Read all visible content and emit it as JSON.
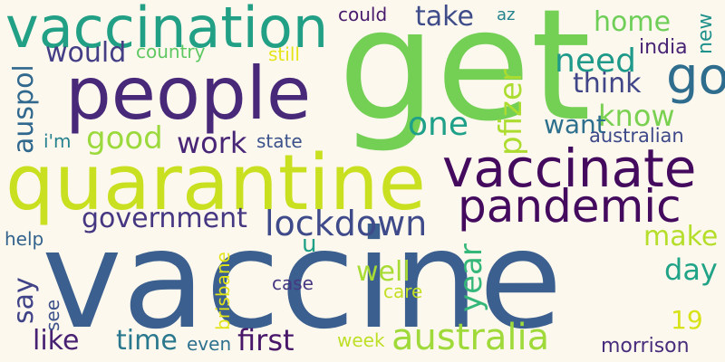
{
  "word_cloud": {
    "background": "#fdf8ee",
    "words": [
      {
        "text": "vaccine",
        "color": "#3b5f8e",
        "orientation": "horizontal"
      },
      {
        "text": "get",
        "color": "#74d055",
        "orientation": "horizontal"
      },
      {
        "text": "people",
        "color": "#482878",
        "orientation": "horizontal"
      },
      {
        "text": "vaccination",
        "color": "#22a086",
        "orientation": "horizontal"
      },
      {
        "text": "quarantine",
        "color": "#c8e020",
        "orientation": "horizontal"
      },
      {
        "text": "vaccinate",
        "color": "#440a5e",
        "orientation": "horizontal"
      },
      {
        "text": "pandemic",
        "color": "#440a5e",
        "orientation": "horizontal"
      },
      {
        "text": "go",
        "color": "#2f6d8e",
        "orientation": "horizontal"
      },
      {
        "text": "australia",
        "color": "#9fda3a",
        "orientation": "horizontal"
      },
      {
        "text": "lockdown",
        "color": "#3e4a89",
        "orientation": "horizontal"
      },
      {
        "text": "need",
        "color": "#1f9a8a",
        "orientation": "horizontal"
      },
      {
        "text": "home",
        "color": "#6ece58",
        "orientation": "horizontal"
      },
      {
        "text": "take",
        "color": "#3e4c8a",
        "orientation": "horizontal"
      },
      {
        "text": "would",
        "color": "#433e85",
        "orientation": "horizontal"
      },
      {
        "text": "think",
        "color": "#404688",
        "orientation": "horizontal"
      },
      {
        "text": "know",
        "color": "#7ad151",
        "orientation": "horizontal"
      },
      {
        "text": "one",
        "color": "#1fa088",
        "orientation": "horizontal"
      },
      {
        "text": "want",
        "color": "#2d708e",
        "orientation": "horizontal"
      },
      {
        "text": "good",
        "color": "#9bd93c",
        "orientation": "horizontal"
      },
      {
        "text": "work",
        "color": "#482576",
        "orientation": "horizontal"
      },
      {
        "text": "government",
        "color": "#453781",
        "orientation": "horizontal"
      },
      {
        "text": "first",
        "color": "#481769",
        "orientation": "horizontal"
      },
      {
        "text": "like",
        "color": "#482173",
        "orientation": "horizontal"
      },
      {
        "text": "time",
        "color": "#2a788e",
        "orientation": "horizontal"
      },
      {
        "text": "make",
        "color": "#b5de2b",
        "orientation": "horizontal"
      },
      {
        "text": "day",
        "color": "#20a386",
        "orientation": "horizontal"
      },
      {
        "text": "well",
        "color": "#a8db34",
        "orientation": "horizontal"
      },
      {
        "text": "19",
        "color": "#d8e219",
        "orientation": "horizontal"
      },
      {
        "text": "morrison",
        "color": "#472d7b",
        "orientation": "horizontal"
      },
      {
        "text": "could",
        "color": "#481a6c",
        "orientation": "horizontal"
      },
      {
        "text": "az",
        "color": "#25838e",
        "orientation": "horizontal"
      },
      {
        "text": "country",
        "color": "#5ec962",
        "orientation": "horizontal"
      },
      {
        "text": "still",
        "color": "#e5e419",
        "orientation": "horizontal"
      },
      {
        "text": "india",
        "color": "#482475",
        "orientation": "horizontal"
      },
      {
        "text": "i'm",
        "color": "#26828e",
        "orientation": "horizontal"
      },
      {
        "text": "state",
        "color": "#3b528b",
        "orientation": "horizontal"
      },
      {
        "text": "australian",
        "color": "#3e4989",
        "orientation": "horizontal"
      },
      {
        "text": "help",
        "color": "#33638d",
        "orientation": "horizontal"
      },
      {
        "text": "case",
        "color": "#453882",
        "orientation": "horizontal"
      },
      {
        "text": "care",
        "color": "#c2df23",
        "orientation": "horizontal"
      },
      {
        "text": "week",
        "color": "#bddf26",
        "orientation": "horizontal"
      },
      {
        "text": "even",
        "color": "#2d718e",
        "orientation": "horizontal"
      },
      {
        "text": "u",
        "color": "#1fa187",
        "orientation": "horizontal"
      },
      {
        "text": "auspol",
        "color": "#31688e",
        "orientation": "vertical"
      },
      {
        "text": "pfizer",
        "color": "#addc30",
        "orientation": "vertical"
      },
      {
        "text": "new",
        "color": "#21918c",
        "orientation": "vertical"
      },
      {
        "text": "year",
        "color": "#35b779",
        "orientation": "vertical"
      },
      {
        "text": "say",
        "color": "#404387",
        "orientation": "vertical"
      },
      {
        "text": "see",
        "color": "#3b528b",
        "orientation": "vertical"
      },
      {
        "text": "brisbane",
        "color": "#e2e418",
        "orientation": "vertical"
      }
    ]
  }
}
